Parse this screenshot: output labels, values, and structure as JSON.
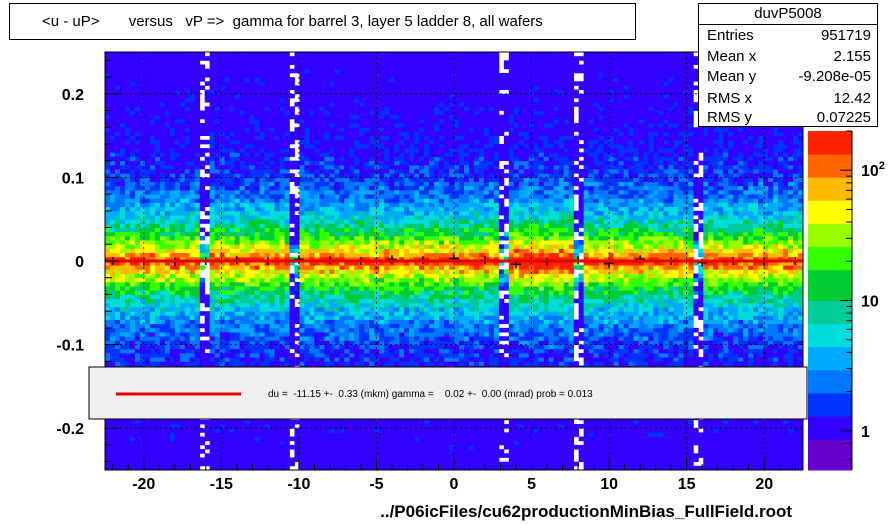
{
  "title": "<u - uP>       versus   vP =>  gamma for barrel 3, layer 5 ladder 8, all wafers",
  "stats": {
    "name": "duvP5008",
    "rows": [
      {
        "label": "Entries",
        "value": "951719"
      },
      {
        "label": "Mean x",
        "value": "2.155"
      },
      {
        "label": "Mean y",
        "value": "-9.208e-05"
      },
      {
        "label": "RMS x",
        "value": "12.42"
      },
      {
        "label": "RMS y",
        "value": "0.07225"
      }
    ]
  },
  "fit_text": "du =  -11.15 +-  0.33 (mkm) gamma =    0.02 +-  0.00 (mrad) prob = 0.013",
  "footer": "../P06icFiles/cu62productionMinBias_FullField.root",
  "colors": {
    "fit_line": "#e60000",
    "profile_points": "#000000",
    "frame": "#000000",
    "palette": [
      "#6600cc",
      "#3300ff",
      "#0033ff",
      "#0077ff",
      "#00aaff",
      "#00dddd",
      "#00cc99",
      "#00cc33",
      "#33ff00",
      "#99ff00",
      "#ffff00",
      "#ffbb00",
      "#ff6600",
      "#ff2200"
    ]
  },
  "chart_data": {
    "type": "heatmap",
    "title": "<u - uP>       versus   vP =>  gamma for barrel 3, layer 5 ladder 8, all wafers",
    "xlabel": "",
    "ylabel": "",
    "xlim": [
      -22.5,
      22.5
    ],
    "ylim": [
      -0.25,
      0.25
    ],
    "x_ticks": [
      -20,
      -15,
      -10,
      -5,
      0,
      5,
      10,
      15,
      20
    ],
    "x_tick_labels": [
      "-20",
      "-15",
      "-10",
      "-5",
      "0",
      "5",
      "10",
      "15",
      "20"
    ],
    "y_ticks": [
      -0.2,
      -0.1,
      0,
      0.1,
      0.2
    ],
    "y_tick_labels": [
      "-0.2",
      "-0.1",
      "0",
      "0.1",
      "0.2"
    ],
    "grid": true,
    "z_scale": "log",
    "z_range": [
      0.5,
      200
    ],
    "z_ticks": [
      1,
      10,
      100
    ],
    "z_tick_labels": [
      "1",
      "10",
      "10^2"
    ],
    "profile": {
      "x": [
        -22,
        -20,
        -18,
        -16,
        -14,
        -12,
        -10,
        -8,
        -6,
        -4,
        -2,
        0,
        2,
        4,
        6,
        8,
        10,
        12,
        14,
        16,
        18,
        20,
        22
      ],
      "y": [
        0.0,
        -0.001,
        -0.001,
        0.0,
        0.001,
        0.0,
        0.002,
        0.001,
        0.0,
        0.002,
        0.001,
        0.003,
        0.001,
        -0.004,
        -0.001,
        0.001,
        -0.003,
        0.002,
        0.0,
        -0.002,
        0.0,
        -0.001,
        0.0
      ]
    },
    "fit": {
      "x": [
        -22.5,
        22.5
      ],
      "y": [
        0.0,
        0.0
      ]
    }
  }
}
